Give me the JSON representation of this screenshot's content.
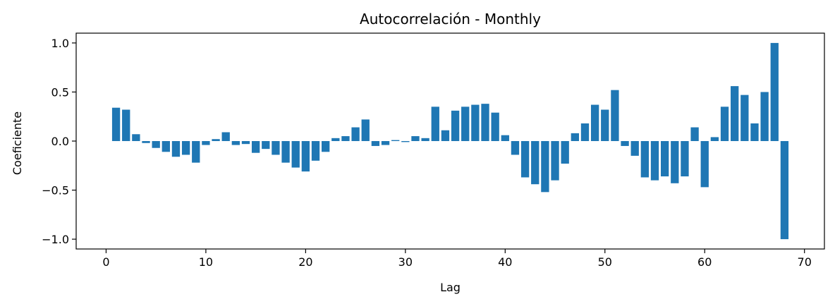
{
  "chart_data": {
    "type": "bar",
    "title": "Autocorrelación - Monthly",
    "xlabel": "Lag",
    "ylabel": "Coeficiente",
    "xlim": [
      -3,
      72
    ],
    "ylim": [
      -1.1,
      1.1
    ],
    "xticks": [
      0,
      10,
      20,
      30,
      40,
      50,
      60,
      70
    ],
    "xtick_labels": [
      "0",
      "10",
      "20",
      "30",
      "40",
      "50",
      "60",
      "70"
    ],
    "yticks": [
      -1.0,
      -0.5,
      0.0,
      0.5,
      1.0
    ],
    "ytick_labels": [
      "−1.0",
      "−0.5",
      "0.0",
      "0.5",
      "1.0"
    ],
    "grid": false,
    "bar_color": "#1f77b4",
    "x": [
      1,
      2,
      3,
      4,
      5,
      6,
      7,
      8,
      9,
      10,
      11,
      12,
      13,
      14,
      15,
      16,
      17,
      18,
      19,
      20,
      21,
      22,
      23,
      24,
      25,
      26,
      27,
      28,
      29,
      30,
      31,
      32,
      33,
      34,
      35,
      36,
      37,
      38,
      39,
      40,
      41,
      42,
      43,
      44,
      45,
      46,
      47,
      48,
      49,
      50,
      51,
      52,
      53,
      54,
      55,
      56,
      57,
      58,
      59,
      60,
      61,
      62,
      63,
      64,
      65,
      66,
      67,
      68
    ],
    "values": [
      0.34,
      0.32,
      0.07,
      -0.02,
      -0.07,
      -0.11,
      -0.16,
      -0.14,
      -0.22,
      -0.04,
      0.02,
      0.09,
      -0.04,
      -0.03,
      -0.12,
      -0.08,
      -0.14,
      -0.22,
      -0.27,
      -0.31,
      -0.2,
      -0.11,
      0.03,
      0.05,
      0.14,
      0.22,
      -0.05,
      -0.04,
      0.01,
      -0.01,
      0.05,
      0.03,
      0.35,
      0.11,
      0.31,
      0.35,
      0.37,
      0.38,
      0.29,
      0.06,
      -0.14,
      -0.37,
      -0.44,
      -0.52,
      -0.4,
      -0.23,
      0.08,
      0.18,
      0.37,
      0.32,
      0.52,
      -0.05,
      -0.15,
      -0.37,
      -0.4,
      -0.36,
      -0.43,
      -0.36,
      0.14,
      -0.47,
      0.04,
      0.35,
      0.56,
      0.47,
      0.18,
      0.5,
      1.0,
      -1.0
    ]
  }
}
